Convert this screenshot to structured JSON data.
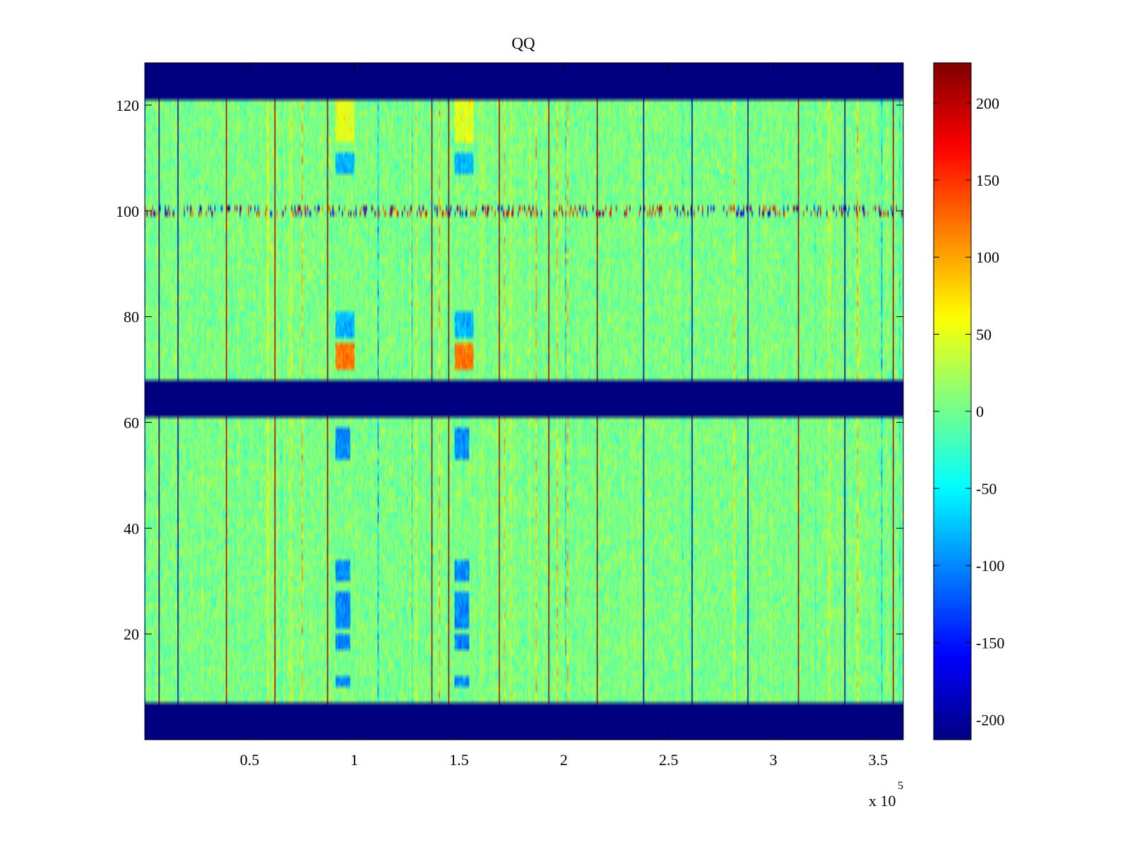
{
  "chart_data": {
    "type": "heatmap",
    "title": "QQ",
    "xlabel": "",
    "ylabel": "",
    "x_multiplier_label": {
      "base": "x 10",
      "exponent": "5"
    },
    "xlim": [
      0,
      3.62
    ],
    "ylim": [
      0,
      128
    ],
    "x_ticks": [
      0.5,
      1,
      1.5,
      2,
      2.5,
      3,
      3.5
    ],
    "x_tick_labels": [
      "0.5",
      "1",
      "1.5",
      "2",
      "2.5",
      "3",
      "3.5"
    ],
    "y_ticks": [
      20,
      40,
      60,
      80,
      100,
      120
    ],
    "y_tick_labels": [
      "20",
      "40",
      "60",
      "80",
      "100",
      "120"
    ],
    "colormap": "jet",
    "colorbar": {
      "range": [
        -213,
        226
      ],
      "ticks": [
        200,
        150,
        100,
        50,
        0,
        -50,
        -100,
        -150,
        -200
      ],
      "tick_labels": [
        "200",
        "150",
        "100",
        "50",
        "0",
        "-50",
        "-100",
        "-150",
        "-200"
      ]
    },
    "background_value": 5,
    "empty_row_bands": [
      [
        0,
        7
      ],
      [
        61,
        68
      ],
      [
        121,
        128
      ]
    ],
    "data_row_bands": [
      [
        7,
        61
      ],
      [
        68,
        121
      ]
    ],
    "noisy_rows": [
      100
    ],
    "columns_of_interest": [
      0.87,
      1.45
    ],
    "strong_vertical_lines": [
      {
        "x": 0.07,
        "value": -200
      },
      {
        "x": 0.16,
        "value": -200
      },
      {
        "x": 0.39,
        "value": 210
      },
      {
        "x": 0.62,
        "value": 210
      },
      {
        "x": 0.87,
        "value": 220
      },
      {
        "x": 1.37,
        "value": 210
      },
      {
        "x": 1.45,
        "value": 220
      },
      {
        "x": 1.69,
        "value": 210
      },
      {
        "x": 1.93,
        "value": 215
      },
      {
        "x": 2.16,
        "value": 215
      },
      {
        "x": 2.38,
        "value": -200
      },
      {
        "x": 2.61,
        "value": -200
      },
      {
        "x": 2.88,
        "value": -200
      },
      {
        "x": 3.12,
        "value": 210
      },
      {
        "x": 3.34,
        "value": -200
      },
      {
        "x": 3.57,
        "value": 210
      }
    ],
    "blob_regions": [
      {
        "x": [
          0.91,
          1.0
        ],
        "y": [
          70,
          75
        ],
        "value": 120
      },
      {
        "x": [
          1.48,
          1.57
        ],
        "y": [
          70,
          75
        ],
        "value": 120
      },
      {
        "x": [
          0.91,
          1.0
        ],
        "y": [
          76,
          81
        ],
        "value": -80
      },
      {
        "x": [
          1.48,
          1.57
        ],
        "y": [
          76,
          81
        ],
        "value": -80
      },
      {
        "x": [
          0.91,
          1.0
        ],
        "y": [
          107,
          111
        ],
        "value": -80
      },
      {
        "x": [
          1.48,
          1.57
        ],
        "y": [
          107,
          111
        ],
        "value": -80
      },
      {
        "x": [
          0.91,
          1.0
        ],
        "y": [
          113,
          121
        ],
        "value": 50
      },
      {
        "x": [
          1.48,
          1.57
        ],
        "y": [
          113,
          121
        ],
        "value": 50
      },
      {
        "x": [
          0.91,
          0.98
        ],
        "y": [
          10,
          12
        ],
        "value": -100
      },
      {
        "x": [
          1.48,
          1.55
        ],
        "y": [
          10,
          12
        ],
        "value": -100
      },
      {
        "x": [
          0.91,
          0.98
        ],
        "y": [
          17,
          20
        ],
        "value": -100
      },
      {
        "x": [
          1.48,
          1.55
        ],
        "y": [
          17,
          20
        ],
        "value": -100
      },
      {
        "x": [
          0.91,
          0.98
        ],
        "y": [
          21,
          28
        ],
        "value": -100
      },
      {
        "x": [
          1.48,
          1.55
        ],
        "y": [
          21,
          28
        ],
        "value": -100
      },
      {
        "x": [
          0.91,
          0.98
        ],
        "y": [
          30,
          34
        ],
        "value": -100
      },
      {
        "x": [
          1.48,
          1.55
        ],
        "y": [
          30,
          34
        ],
        "value": -100
      },
      {
        "x": [
          0.91,
          0.98
        ],
        "y": [
          53,
          59
        ],
        "value": -100
      },
      {
        "x": [
          1.48,
          1.55
        ],
        "y": [
          53,
          59
        ],
        "value": -100
      }
    ]
  }
}
